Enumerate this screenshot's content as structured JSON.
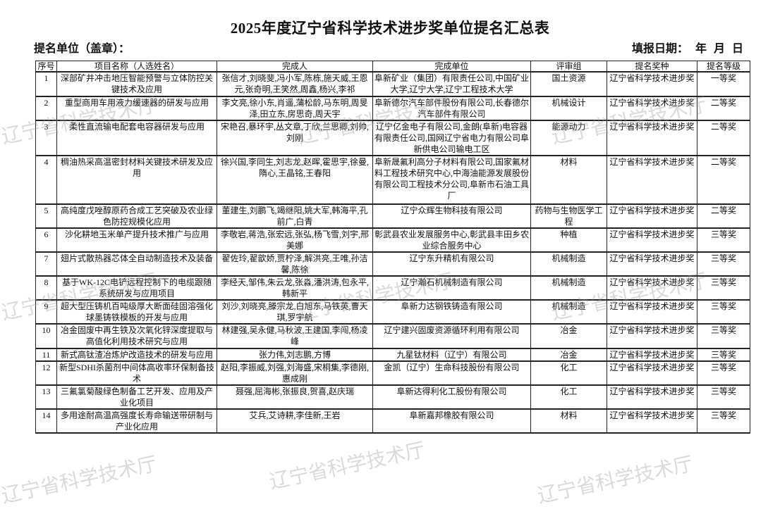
{
  "title": "2025年度辽宁省科学技术进步奖单位提名汇总表",
  "nominating_unit_label": "提名单位（盖章）：",
  "fill_date_label": "填报日期：  年  月  日",
  "watermark": "辽宁省科学技术厅",
  "table": {
    "headers": [
      "序号",
      "项目名称（人选姓名）",
      "完成人",
      "完成单位",
      "评审组",
      "提名奖种",
      "提名等级"
    ],
    "rows": [
      [
        "1",
        "深部矿井冲击地压智能预警与立体防控关键技术及应用",
        "张信才,刘晓斐,冯小军,陈栋,施天威,王恩元,张奇明,王笑然,周鑫,杨兴,李祁",
        "阜新矿业（集团）有限责任公司,中国矿业大学,辽宁大学,辽宁工程技术大学",
        "国土资源",
        "辽宁省科学技术进步奖",
        "一等奖"
      ],
      [
        "2",
        "重型商用车用液力缓速器的研发与应用",
        "李文亮,徐小东,肖遥,蒲松龄,马东明,周旻泽,田立东,房思奇,周天宇",
        "阜新德尔汽车部件股份有限公司,长春德尔汽车部件有限公司",
        "机械设计",
        "辽宁省科学技术进步奖",
        "二等奖"
      ],
      [
        "3",
        "柔性直流输电配套电容器研发与应用",
        "宋艳召,暴环宇,丛文章,丁欣,兰思卿,刘帅,刘刚",
        "辽宁亿金电子有限公司,金朗(阜新)电容器有限责任公司,国网辽宁省电力有限公司阜新供电公司输电工区",
        "能源动力",
        "辽宁省科学技术进步奖",
        "二等奖"
      ],
      [
        "4",
        "稠油热采高温密封材料关键技术研发及应用",
        "徐兴国,李同生,刘志龙,赵晖,霍思宇,徐曼,隋心,王晶铭,王春阳",
        "阜新晟氟利高分子材料有限公司,国家氟材料工程技术研究中心,中海油能源发展股份有限公司工程技术分公司,阜新市石油工具厂",
        "材料",
        "辽宁省科学技术进步奖",
        "二等奖"
      ],
      [
        "5",
        "高纯度戊唑醇原药合成工艺突破及农业绿色防控规模化应用",
        "董建生,刘鹏飞,竭继阳,姚大军,韩海平,孔前广,白青",
        "辽宁众辉生物科技有限公司",
        "药物与生物医学工程",
        "辽宁省科学技术进步奖",
        "二等奖"
      ],
      [
        "6",
        "沙化耕地玉米单产提升技术推广与应用",
        "李敬岩,蒋浩,张宏远,张弘,杨飞雪,刘宇,邢美娜",
        "彰武县农业发展服务中心,彰武县丰田乡农业综合服务中心",
        "种植",
        "辽宁省科学技术进步奖",
        "三等奖"
      ],
      [
        "7",
        "翅片式散热器芯体全自动制造技术及装备",
        "翟佐玲,翟歆娇,贾柠泽,解洪亮,王唯,孙洁馨,陈徐",
        "辽宁东升精机有限公司",
        "机械制造",
        "辽宁省科学技术进步奖",
        "三等奖"
      ],
      [
        "8",
        "基于WK-12C电铲远程控制下的电缆跟随系统研发与应用项目",
        "李经天,邹伟,朱云龙,张淼,潘洪涛,包永平,韩新平",
        "辽宁瀚石机械制造有限公司",
        "机械制造",
        "辽宁省科学技术进步奖",
        "三等奖"
      ],
      [
        "9",
        "超大型压铸机百吨级厚大断面硅固溶强化球墨铸铁模板的开发与应用",
        "刘沙,刘晓亮,滕宗龙,白旭东,马铁英,曹天琪,罗宇航",
        "阜新力达钢铁铸造有限公司",
        "机械制造",
        "辽宁省科学技术进步奖",
        "三等奖"
      ],
      [
        "10",
        "冶金固废中再生铁及次氧化锌深度提取与高值化利用技术研究与应用",
        "林建强,吴永健,马秋波,王建国,李闯,杨凌峰",
        "辽宁建兴固废资源循环利用有限公司",
        "冶金",
        "辽宁省科学技术进步奖",
        "三等奖"
      ],
      [
        "11",
        "新式高钛渣冶炼炉改造技术的研发与应用",
        "张力伟,刘志鹏,方博",
        "九星钛材料（辽宁）有限公司",
        "冶金",
        "辽宁省科学技术进步奖",
        "三等奖"
      ],
      [
        "12",
        "新型SDHI杀菌剂中间体高收率环保制备技术",
        "赵阳,李振威,刘强,刘海盛,宋桐集,李德刚,惠成刚",
        "金凯（辽宁）生命科技股份有限公司",
        "化工",
        "辽宁省科学技术进步奖",
        "三等奖"
      ],
      [
        "13",
        "三氟氯菊酸绿色制备工艺开发、应用及产业化项目",
        "聂强,屈海彬,张振良,贺喜,赵庆瑞",
        "阜新达得利化工股份有限公司",
        "化工",
        "辽宁省科学技术进步奖",
        "三等奖"
      ],
      [
        "14",
        "多用途耐高温高强度长寿命输送带研制与产业化应用",
        "艾兵,艾诗耕,李佳新,王岩",
        "阜新嘉邦橡胶有限公司",
        "材料",
        "辽宁省科学技术进步奖",
        "三等奖"
      ]
    ]
  }
}
